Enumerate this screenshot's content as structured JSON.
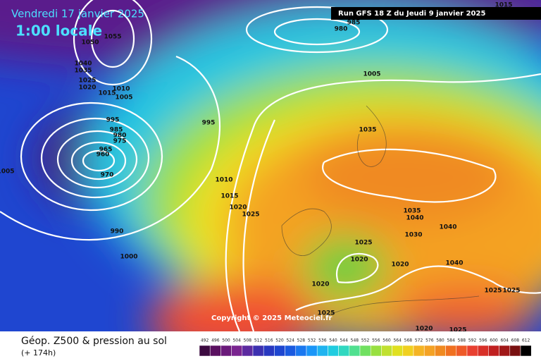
{
  "header": {
    "date": "Vendredi 17 janvier 2025",
    "time": "1:00 locale",
    "run": "Run GFS 18 Z du Jeudi 9 janvier 2025"
  },
  "copyright": "Copyright © 2025 Meteociel.fr",
  "footer": {
    "title": "Géop. Z500 & pression au sol",
    "lead": "(+ 174h)"
  },
  "colorbar": {
    "ticks": [
      492,
      496,
      500,
      504,
      508,
      512,
      516,
      520,
      524,
      528,
      532,
      536,
      540,
      544,
      548,
      552,
      556,
      560,
      564,
      568,
      572,
      576,
      580,
      584,
      588,
      592,
      596,
      600,
      604,
      608,
      612
    ]
  },
  "isobar_labels": [
    1015,
    1055,
    1050,
    1040,
    1035,
    1025,
    1020,
    1015,
    1010,
    1005,
    985,
    980,
    1005,
    995,
    985,
    980,
    975,
    965,
    960,
    970,
    995,
    1010,
    1015,
    1020,
    1025,
    990,
    1000,
    1005,
    1035,
    1035,
    1040,
    1030,
    1040,
    1025,
    1020,
    1020,
    1040,
    1025,
    1025,
    1020,
    1025,
    1020,
    1025
  ]
}
